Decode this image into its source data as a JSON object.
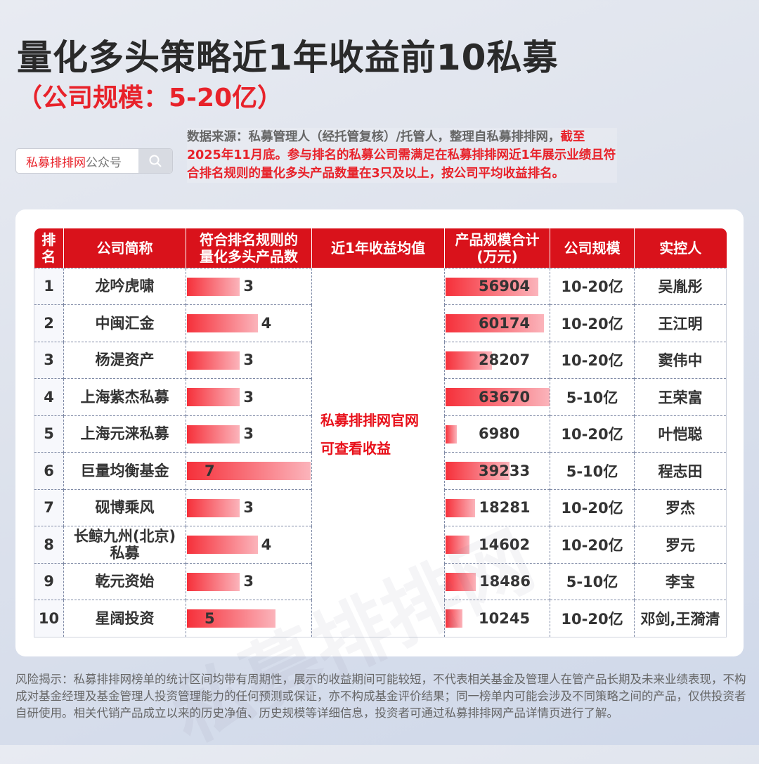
{
  "header": {
    "title": "量化多头策略近1年收益前10私募",
    "subtitle": "（公司规模：5-20亿）"
  },
  "search": {
    "brand": "私募排排网",
    "suffix": "公众号",
    "icon": "search-icon"
  },
  "note": {
    "gray": "数据来源：私募管理人（经托管复核）/托管人，整理自私募排排网，",
    "red": "截至2025年11月底。参与排名的私募公司需满足在私募排排网近1年展示业绩且符合排名规则的量化多头产品数量在3只及以上，按公司平均收益排名。"
  },
  "colors": {
    "accent": "#d9121b",
    "bar_start": "#f6303a",
    "bar_end": "#fbb4bb"
  },
  "overlay": {
    "line1": "私募排排网官网",
    "line2": "可查看收益"
  },
  "watermark": "私募排排网",
  "chart_data": {
    "type": "table",
    "columns": [
      "排名",
      "公司简称",
      "符合排名规则的量化多头产品数",
      "近1年收益均值",
      "产品规模合计(万元)",
      "公司规模",
      "实控人"
    ],
    "rows": [
      {
        "rank": "1",
        "name": "龙吟虎啸",
        "count": 3,
        "size": 56904,
        "scale": "10-20亿",
        "controller": "吴胤彤"
      },
      {
        "rank": "2",
        "name": "中闽汇金",
        "count": 4,
        "size": 60174,
        "scale": "10-20亿",
        "controller": "王江明"
      },
      {
        "rank": "3",
        "name": "杨湜资产",
        "count": 3,
        "size": 28207,
        "scale": "10-20亿",
        "controller": "窦伟中"
      },
      {
        "rank": "4",
        "name": "上海紫杰私募",
        "count": 3,
        "size": 63670,
        "scale": "5-10亿",
        "controller": "王荣富"
      },
      {
        "rank": "5",
        "name": "上海元涞私募",
        "count": 3,
        "size": 6980,
        "scale": "10-20亿",
        "controller": "叶恺聪"
      },
      {
        "rank": "6",
        "name": "巨量均衡基金",
        "count": 7,
        "size": 39233,
        "scale": "5-10亿",
        "controller": "程志田"
      },
      {
        "rank": "7",
        "name": "砚博乘风",
        "count": 3,
        "size": 18281,
        "scale": "10-20亿",
        "controller": "罗杰"
      },
      {
        "rank": "8",
        "name": "长鲸九州(北京)私募",
        "count": 4,
        "size": 14602,
        "scale": "10-20亿",
        "controller": "罗元"
      },
      {
        "rank": "9",
        "name": "乾元资始",
        "count": 3,
        "size": 18486,
        "scale": "5-10亿",
        "controller": "李宝"
      },
      {
        "rank": "10",
        "name": "星阔投资",
        "count": 5,
        "size": 10245,
        "scale": "10-20亿",
        "controller": "邓剑,王漪清"
      }
    ]
  },
  "risk": "风险揭示：私募排排网榜单的统计区间均带有周期性，展示的收益期间可能较短，不代表相关基金及管理人在管产品长期及未来业绩表现，不构成对基金经理及基金管理人投资管理能力的任何预测或保证，亦不构成基金评价结果；同一榜单内可能会涉及不同策略之间的产品，仅供投资者自研使用。相关代销产品成立以来的历史净值、历史规模等详细信息，投资者可通过私募排排网产品详情页进行了解。"
}
